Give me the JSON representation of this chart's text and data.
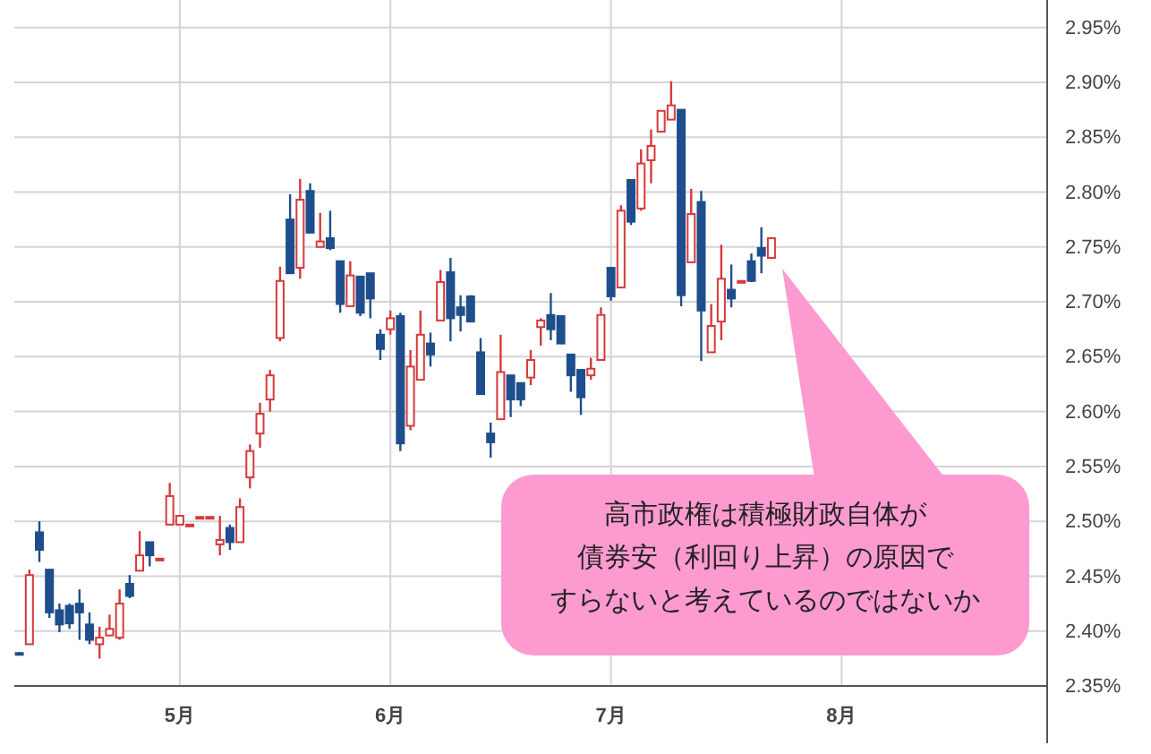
{
  "chart_data": {
    "type": "candlestick",
    "categories": [
      null,
      null,
      null,
      null,
      null,
      null,
      null,
      null,
      null,
      null,
      null,
      null,
      null,
      null,
      null,
      null,
      "5月",
      null,
      null,
      null,
      null,
      null,
      null,
      null,
      null,
      null,
      null,
      null,
      null,
      null,
      null,
      null,
      null,
      null,
      null,
      null,
      null,
      "6月",
      null,
      null,
      null,
      null,
      null,
      null,
      null,
      null,
      null,
      null,
      null,
      null,
      null,
      null,
      null,
      null,
      null,
      null,
      null,
      null,
      null,
      "7月",
      null,
      null,
      null,
      null,
      null,
      null,
      null,
      null,
      null,
      null,
      null,
      null,
      null,
      null,
      null,
      null,
      null,
      null,
      null,
      null,
      null,
      null,
      "8月",
      null,
      null,
      null,
      null,
      null,
      null,
      null,
      null,
      null,
      null,
      null,
      null,
      null,
      null,
      null,
      null,
      null,
      null,
      null,
      null
    ],
    "ohlc": [
      [
        2.38,
        2.381,
        2.378,
        2.379
      ],
      [
        2.388,
        2.456,
        2.388,
        2.451
      ],
      [
        2.49,
        2.5,
        2.463,
        2.474
      ],
      [
        2.456,
        2.456,
        2.412,
        2.417
      ],
      [
        2.419,
        2.425,
        2.399,
        2.406
      ],
      [
        2.423,
        2.425,
        2.402,
        2.407
      ],
      [
        2.425,
        2.438,
        2.392,
        2.417
      ],
      [
        2.406,
        2.417,
        2.388,
        2.392
      ],
      [
        2.388,
        2.404,
        2.375,
        2.394
      ],
      [
        2.396,
        2.415,
        2.396,
        2.402
      ],
      [
        2.394,
        2.438,
        2.392,
        2.425
      ],
      [
        2.443,
        2.451,
        2.43,
        2.432
      ],
      [
        2.455,
        2.491,
        2.455,
        2.469
      ],
      [
        2.481,
        2.481,
        2.459,
        2.469
      ],
      [
        2.466,
        2.466,
        2.466,
        2.466
      ],
      [
        2.497,
        2.535,
        2.497,
        2.523
      ],
      [
        2.497,
        2.505,
        2.497,
        2.505
      ],
      [
        2.497,
        2.497,
        2.497,
        2.497
      ],
      [
        2.504,
        2.504,
        2.504,
        2.504
      ],
      [
        2.504,
        2.504,
        2.504,
        2.504
      ],
      [
        2.479,
        2.505,
        2.469,
        2.483
      ],
      [
        2.494,
        2.497,
        2.474,
        2.481
      ],
      [
        2.481,
        2.521,
        2.481,
        2.513
      ],
      [
        2.54,
        2.57,
        2.53,
        2.564
      ],
      [
        2.58,
        2.608,
        2.567,
        2.598
      ],
      [
        2.611,
        2.638,
        2.6,
        2.633
      ],
      [
        2.667,
        2.732,
        2.664,
        2.719
      ],
      [
        2.775,
        2.798,
        2.726,
        2.726
      ],
      [
        2.731,
        2.812,
        2.721,
        2.793
      ],
      [
        2.801,
        2.808,
        2.763,
        2.763
      ],
      [
        2.75,
        2.781,
        2.75,
        2.755
      ],
      [
        2.758,
        2.783,
        2.747,
        2.749
      ],
      [
        2.737,
        2.737,
        2.69,
        2.698
      ],
      [
        2.696,
        2.737,
        2.696,
        2.724
      ],
      [
        2.723,
        2.723,
        2.687,
        2.69
      ],
      [
        2.726,
        2.726,
        2.685,
        2.703
      ],
      [
        2.67,
        2.675,
        2.647,
        2.657
      ],
      [
        2.675,
        2.692,
        2.67,
        2.685
      ],
      [
        2.687,
        2.69,
        2.564,
        2.571
      ],
      [
        2.587,
        2.656,
        2.583,
        2.641
      ],
      [
        2.629,
        2.692,
        2.629,
        2.67
      ],
      [
        2.662,
        2.672,
        2.641,
        2.652
      ],
      [
        2.683,
        2.729,
        2.683,
        2.718
      ],
      [
        2.727,
        2.74,
        2.664,
        2.685
      ],
      [
        2.695,
        2.706,
        2.673,
        2.688
      ],
      [
        2.705,
        2.706,
        2.682,
        2.682
      ],
      [
        2.654,
        2.667,
        2.616,
        2.616
      ],
      [
        2.58,
        2.59,
        2.558,
        2.572
      ],
      [
        2.593,
        2.67,
        2.593,
        2.636
      ],
      [
        2.633,
        2.633,
        2.595,
        2.611
      ],
      [
        2.626,
        2.626,
        2.605,
        2.611
      ],
      [
        2.631,
        2.656,
        2.624,
        2.647
      ],
      [
        2.677,
        2.685,
        2.66,
        2.683
      ],
      [
        2.688,
        2.708,
        2.665,
        2.675
      ],
      [
        2.687,
        2.687,
        2.662,
        2.662
      ],
      [
        2.652,
        2.652,
        2.618,
        2.633
      ],
      [
        2.638,
        2.638,
        2.597,
        2.613
      ],
      [
        2.633,
        2.649,
        2.629,
        2.639
      ],
      [
        2.647,
        2.695,
        2.647,
        2.688
      ],
      [
        2.731,
        2.731,
        2.701,
        2.705
      ],
      [
        2.713,
        2.788,
        2.713,
        2.783
      ],
      [
        2.811,
        2.811,
        2.77,
        2.773
      ],
      [
        2.785,
        2.839,
        2.783,
        2.826
      ],
      [
        2.829,
        2.857,
        2.808,
        2.842
      ],
      [
        2.855,
        2.874,
        2.855,
        2.874
      ],
      [
        2.866,
        2.901,
        2.866,
        2.879
      ],
      [
        2.875,
        2.875,
        2.696,
        2.706
      ],
      [
        2.736,
        2.803,
        2.736,
        2.78
      ],
      [
        2.791,
        2.801,
        2.646,
        2.692
      ],
      [
        2.654,
        2.698,
        2.654,
        2.678
      ],
      [
        2.682,
        2.752,
        2.665,
        2.721
      ],
      [
        2.711,
        2.734,
        2.695,
        2.703
      ],
      [
        2.719,
        2.719,
        2.719,
        2.719
      ],
      [
        2.737,
        2.744,
        2.718,
        2.719
      ],
      [
        2.749,
        2.768,
        2.726,
        2.742
      ],
      [
        2.74,
        2.758,
        2.74,
        2.758
      ],
      null,
      null,
      null,
      null,
      null,
      null,
      null,
      null,
      null,
      null,
      null,
      null,
      null,
      null,
      null,
      null,
      null,
      null,
      null,
      null,
      null,
      null,
      null,
      null,
      null,
      null,
      null
    ],
    "colors": [
      "#1f4e8c",
      "#d63a3a",
      "#1f4e8c",
      "#1f4e8c",
      "#1f4e8c",
      "#1f4e8c",
      "#1f4e8c",
      "#1f4e8c",
      "#d63a3a",
      "#d63a3a",
      "#d63a3a",
      "#1f4e8c",
      "#d63a3a",
      "#1f4e8c",
      "#d63a3a",
      "#d63a3a",
      "#d63a3a",
      "#d63a3a",
      "#d63a3a",
      "#d63a3a",
      "#d63a3a",
      "#1f4e8c",
      "#d63a3a",
      "#d63a3a",
      "#d63a3a",
      "#d63a3a",
      "#d63a3a",
      "#1f4e8c",
      "#d63a3a",
      "#1f4e8c",
      "#d63a3a",
      "#1f4e8c",
      "#1f4e8c",
      "#d63a3a",
      "#1f4e8c",
      "#1f4e8c",
      "#1f4e8c",
      "#d63a3a",
      "#1f4e8c",
      "#d63a3a",
      "#d63a3a",
      "#1f4e8c",
      "#d63a3a",
      "#1f4e8c",
      "#1f4e8c",
      "#1f4e8c",
      "#1f4e8c",
      "#1f4e8c",
      "#d63a3a",
      "#1f4e8c",
      "#1f4e8c",
      "#d63a3a",
      "#d63a3a",
      "#1f4e8c",
      "#1f4e8c",
      "#1f4e8c",
      "#1f4e8c",
      "#d63a3a",
      "#d63a3a",
      "#1f4e8c",
      "#d63a3a",
      "#1f4e8c",
      "#d63a3a",
      "#d63a3a",
      "#d63a3a",
      "#d63a3a",
      "#1f4e8c",
      "#d63a3a",
      "#1f4e8c",
      "#d63a3a",
      "#d63a3a",
      "#1f4e8c",
      "#d63a3a",
      "#1f4e8c",
      "#1f4e8c",
      "#d63a3a",
      null,
      null,
      null,
      null,
      null,
      null,
      null,
      null,
      null,
      null,
      null,
      null,
      null,
      null,
      null,
      null,
      null,
      null,
      null,
      null,
      null,
      null,
      null,
      null,
      null,
      null,
      null
    ],
    "ylim": [
      2.35,
      2.975
    ],
    "yticks": [
      {
        "value": 2.35,
        "label": "2.35%"
      },
      {
        "value": 2.4,
        "label": "2.40%"
      },
      {
        "value": 2.45,
        "label": "2.45%"
      },
      {
        "value": 2.5,
        "label": "2.50%"
      },
      {
        "value": 2.55,
        "label": "2.55%"
      },
      {
        "value": 2.6,
        "label": "2.60%"
      },
      {
        "value": 2.65,
        "label": "2.65%"
      },
      {
        "value": 2.7,
        "label": "2.70%"
      },
      {
        "value": 2.75,
        "label": "2.75%"
      },
      {
        "value": 2.8,
        "label": "2.80%"
      },
      {
        "value": 2.85,
        "label": "2.85%"
      },
      {
        "value": 2.9,
        "label": "2.90%"
      },
      {
        "value": 2.95,
        "label": "2.95%"
      }
    ],
    "grid": true,
    "annotations": [
      "高市政権は積極財政自体が",
      "債券安（利回り上昇）の原因で",
      "すらないと考えているのではないか"
    ]
  }
}
